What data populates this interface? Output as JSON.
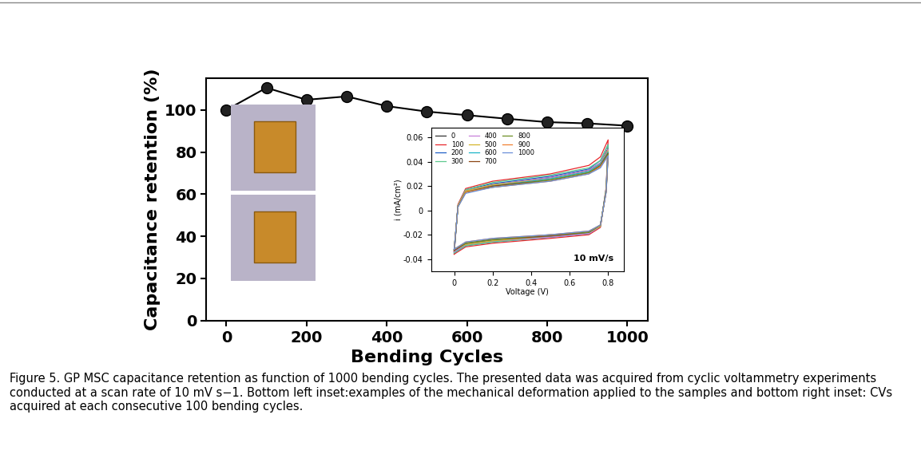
{
  "chart_data": [
    {
      "type": "line",
      "x_label": "Bending Cycles",
      "y_label": "Capacitance retention (%)",
      "x": [
        0,
        100,
        200,
        300,
        400,
        500,
        600,
        700,
        800,
        900,
        1000
      ],
      "values": [
        100,
        110.5,
        104.8,
        106.4,
        101.8,
        99.2,
        97.5,
        95.8,
        94.2,
        93.6,
        92.5
      ],
      "color": "#000000",
      "marker": "o",
      "line_style": "solid",
      "xlim": [
        -50,
        1050
      ],
      "xticks": [
        0,
        200,
        400,
        600,
        800,
        1000
      ],
      "ylim": [
        0,
        115
      ],
      "yticks": [
        0,
        20,
        40,
        60,
        80,
        100
      ]
    },
    {
      "type": "line",
      "x_label": "Voltage (V)",
      "y_label": "i (mA/cm²)",
      "annotation": "10 mV/s",
      "legend": "upper left",
      "x": [
        0,
        0.02,
        0.06,
        0.2,
        0.5,
        0.7,
        0.76,
        0.8,
        0.79,
        0.76,
        0.7,
        0.5,
        0.2,
        0.06,
        0.02,
        0
      ],
      "series": [
        {
          "name": "0",
          "color": "#333333",
          "values": [
            -0.034,
            0.004,
            0.016,
            0.021,
            0.027,
            0.033,
            0.039,
            0.051,
            0.017,
            -0.013,
            -0.019,
            -0.022,
            -0.025,
            -0.028,
            -0.032,
            -0.034
          ]
        },
        {
          "name": "100",
          "color": "#e8262b",
          "values": [
            -0.036,
            0.005,
            0.018,
            0.024,
            0.03,
            0.037,
            0.044,
            0.058,
            0.019,
            -0.014,
            -0.02,
            -0.023,
            -0.027,
            -0.03,
            -0.034,
            -0.036
          ]
        },
        {
          "name": "200",
          "color": "#1f5fc7",
          "values": [
            -0.035,
            0.004,
            0.017,
            0.022,
            0.028,
            0.034,
            0.041,
            0.054,
            0.018,
            -0.013,
            -0.019,
            -0.022,
            -0.026,
            -0.029,
            -0.033,
            -0.035
          ]
        },
        {
          "name": "300",
          "color": "#5fc98f",
          "values": [
            -0.035,
            0.004,
            0.017,
            0.023,
            0.029,
            0.035,
            0.041,
            0.054,
            0.018,
            -0.013,
            -0.019,
            -0.022,
            -0.026,
            -0.029,
            -0.033,
            -0.035
          ]
        },
        {
          "name": "400",
          "color": "#c77fd8",
          "values": [
            -0.034,
            0.004,
            0.016,
            0.021,
            0.027,
            0.033,
            0.039,
            0.05,
            0.017,
            -0.013,
            -0.019,
            -0.022,
            -0.025,
            -0.028,
            -0.032,
            -0.034
          ]
        },
        {
          "name": "500",
          "color": "#d4b52a",
          "values": [
            -0.033,
            0.004,
            0.016,
            0.021,
            0.026,
            0.032,
            0.038,
            0.049,
            0.017,
            -0.013,
            -0.018,
            -0.021,
            -0.025,
            -0.028,
            -0.031,
            -0.033
          ]
        },
        {
          "name": "600",
          "color": "#1ab5c7",
          "values": [
            -0.033,
            0.003,
            0.015,
            0.02,
            0.026,
            0.032,
            0.038,
            0.048,
            0.016,
            -0.012,
            -0.018,
            -0.021,
            -0.024,
            -0.027,
            -0.031,
            -0.033
          ]
        },
        {
          "name": "700",
          "color": "#8b4513",
          "values": [
            -0.033,
            0.003,
            0.015,
            0.02,
            0.025,
            0.031,
            0.037,
            0.047,
            0.016,
            -0.012,
            -0.018,
            -0.021,
            -0.024,
            -0.027,
            -0.031,
            -0.033
          ]
        },
        {
          "name": "800",
          "color": "#6b8e23",
          "values": [
            -0.032,
            0.003,
            0.015,
            0.019,
            0.025,
            0.031,
            0.036,
            0.046,
            0.016,
            -0.012,
            -0.018,
            -0.02,
            -0.024,
            -0.027,
            -0.03,
            -0.032
          ]
        },
        {
          "name": "900",
          "color": "#f08030",
          "values": [
            -0.032,
            0.003,
            0.015,
            0.019,
            0.024,
            0.03,
            0.036,
            0.045,
            0.015,
            -0.012,
            -0.017,
            -0.02,
            -0.023,
            -0.026,
            -0.03,
            -0.032
          ]
        },
        {
          "name": "1000",
          "color": "#6a8fd8",
          "values": [
            -0.032,
            0.003,
            0.014,
            0.019,
            0.024,
            0.03,
            0.035,
            0.045,
            0.015,
            -0.012,
            -0.017,
            -0.02,
            -0.023,
            -0.026,
            -0.03,
            -0.032
          ]
        }
      ],
      "xlim": [
        -0.12,
        0.88
      ],
      "xticks": [
        0,
        0.2,
        0.4,
        0.6,
        0.8
      ],
      "ylim": [
        -0.05,
        0.068
      ],
      "yticks": [
        -0.04,
        -0.02,
        0,
        0.02,
        0.04,
        0.06
      ]
    }
  ],
  "caption": "Figure 5. GP MSC capacitance retention as function of 1000 bending cycles. The presented data was acquired from cyclic voltammetry experiments conducted at a scan rate of 10 mV s−1. Bottom left inset:examples of the mechanical deformation applied to the samples and bottom right inset: CVs acquired at each consecutive 100 bending cycles."
}
